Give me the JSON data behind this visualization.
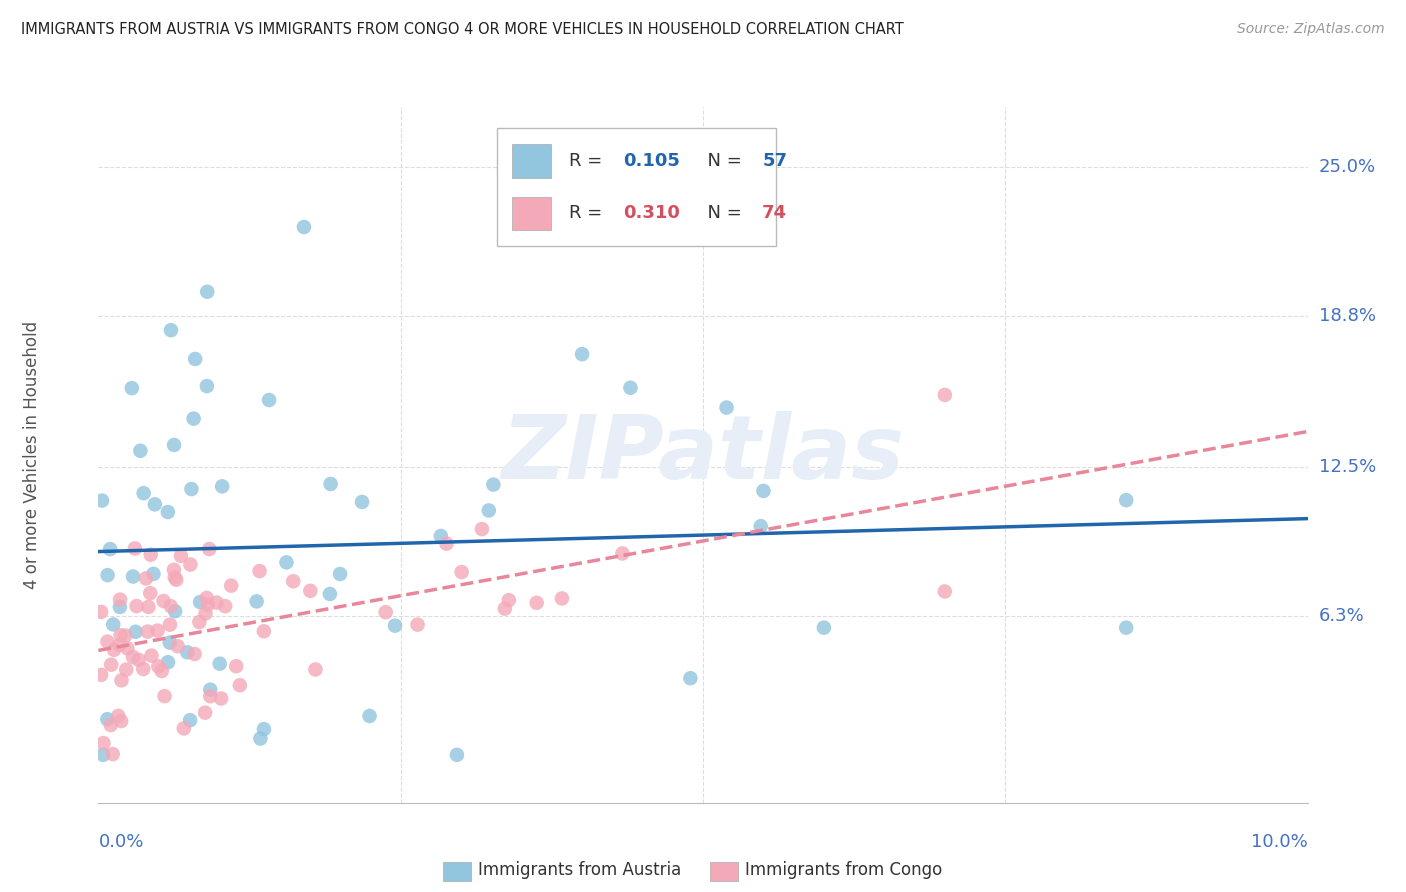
{
  "title": "IMMIGRANTS FROM AUSTRIA VS IMMIGRANTS FROM CONGO 4 OR MORE VEHICLES IN HOUSEHOLD CORRELATION CHART",
  "source": "Source: ZipAtlas.com",
  "ylabel": "4 or more Vehicles in Household",
  "ytick_labels": [
    "25.0%",
    "18.8%",
    "12.5%",
    "6.3%"
  ],
  "ytick_values": [
    0.25,
    0.188,
    0.125,
    0.063
  ],
  "xlim": [
    0.0,
    0.1
  ],
  "ylim": [
    -0.015,
    0.275
  ],
  "austria_R": 0.105,
  "austria_N": 57,
  "congo_R": 0.31,
  "congo_N": 74,
  "austria_color": "#92C5DE",
  "congo_color": "#F4A9B8",
  "austria_line_color": "#2166AC",
  "congo_line_color": "#E8879A",
  "watermark": "ZIPatlas",
  "watermark_color": "#E8EEF8",
  "legend_box_color": "#FFFFFF",
  "legend_border_color": "#CCCCCC",
  "axis_label_color": "#4472C4",
  "title_color": "#222222",
  "source_color": "#999999",
  "grid_color": "#DDDDDD",
  "ylabel_color": "#555555"
}
